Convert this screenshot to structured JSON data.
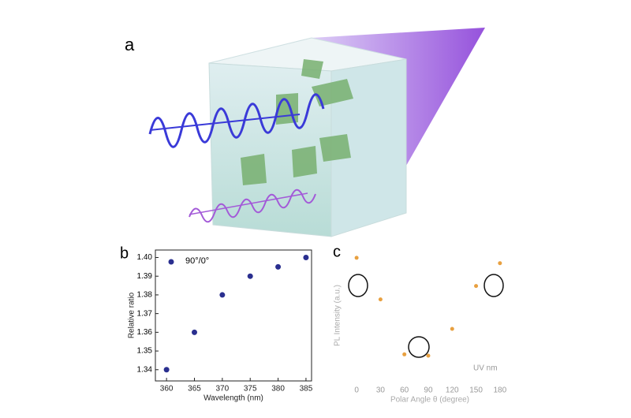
{
  "panel_a": {
    "label": "a"
  },
  "chart_data": [
    {
      "type": "scatter",
      "panel_label": "b",
      "xlabel": "Wavelength (nm)",
      "ylabel": "Relative ratio",
      "series": [
        {
          "name": "90°/0°",
          "color": "#2a2f8f",
          "x": [
            360,
            365,
            370,
            375,
            380,
            385
          ],
          "values": [
            1.34,
            1.36,
            1.38,
            1.39,
            1.395,
            1.4
          ]
        }
      ],
      "xlim": [
        358,
        386
      ],
      "ylim": [
        1.334,
        1.404
      ],
      "xticks": [
        360,
        365,
        370,
        375,
        380,
        385
      ],
      "yticks": [
        1.34,
        1.35,
        1.36,
        1.37,
        1.38,
        1.39,
        {
          "value": 1.4,
          "label": "1.40"
        }
      ],
      "legend": "upper-left"
    },
    {
      "type": "scatter",
      "panel_label": "c",
      "xlabel": "Polar Angle θ (degree)",
      "ylabel": "PL Intensity (a.u.)",
      "annotation": "UV nm",
      "series": [
        {
          "color": "#e8a040",
          "x": [
            0,
            30,
            60,
            90,
            120,
            150,
            180
          ],
          "values": [
            0.93,
            0.62,
            0.21,
            0.2,
            0.4,
            0.72,
            0.89
          ]
        }
      ],
      "xlim": [
        -12,
        196
      ],
      "ylim": [
        0,
        1
      ],
      "xticks": [
        0,
        30,
        60,
        90,
        120,
        150,
        180
      ]
    }
  ]
}
